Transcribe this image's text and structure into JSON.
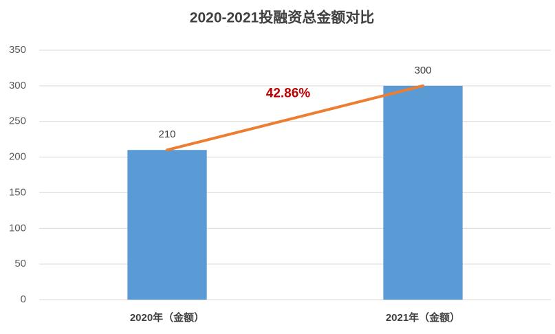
{
  "chart_data": {
    "type": "bar",
    "title": "2020-2021投融资总金额对比",
    "categories": [
      "2020年（金额）",
      "2021年（金额）"
    ],
    "values": [
      210,
      300
    ],
    "color": "#5b9bd5",
    "line_color": "#ed7d31",
    "annotation": "42.86%",
    "ylim": [
      0,
      350
    ],
    "yticks": [
      0,
      50,
      100,
      150,
      200,
      250,
      300,
      350
    ],
    "grid": true
  }
}
